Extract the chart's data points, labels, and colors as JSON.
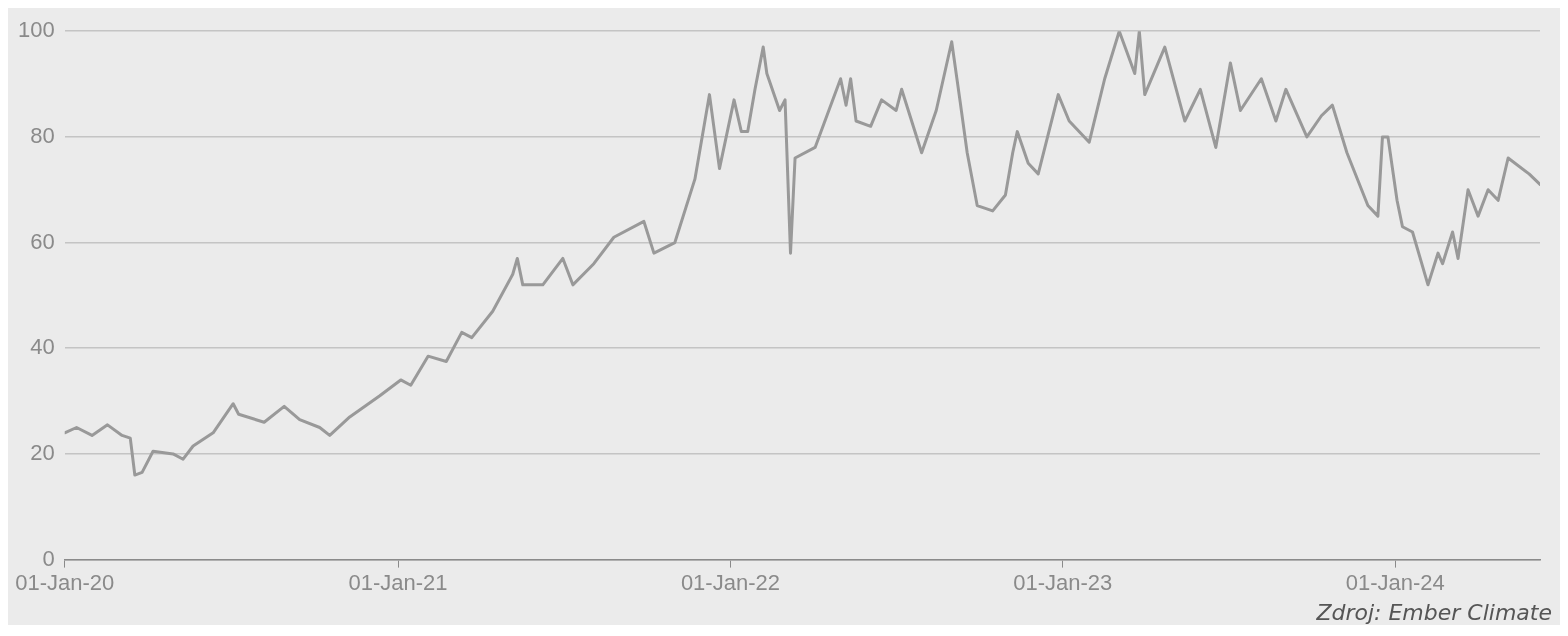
{
  "chart_data": {
    "type": "line",
    "x": [
      "2020-01-01",
      "2020-01-14",
      "2020-01-31",
      "2020-02-17",
      "2020-03-04",
      "2020-03-13",
      "2020-03-18",
      "2020-03-26",
      "2020-04-07",
      "2020-04-29",
      "2020-05-10",
      "2020-05-21",
      "2020-06-12",
      "2020-07-04",
      "2020-07-10",
      "2020-08-07",
      "2020-08-29",
      "2020-09-15",
      "2020-10-07",
      "2020-10-18",
      "2020-11-09",
      "2020-12-12",
      "2021-01-04",
      "2021-01-15",
      "2021-02-03",
      "2021-02-23",
      "2021-03-12",
      "2021-03-23",
      "2021-04-15",
      "2021-05-07",
      "2021-05-12",
      "2021-05-18",
      "2021-06-09",
      "2021-07-01",
      "2021-07-12",
      "2021-08-04",
      "2021-08-26",
      "2021-09-28",
      "2021-10-09",
      "2021-11-01",
      "2021-11-23",
      "2021-12-04",
      "2021-12-09",
      "2021-12-20",
      "2022-01-05",
      "2022-01-13",
      "2022-01-20",
      "2022-01-28",
      "2022-02-06",
      "2022-02-10",
      "2022-02-24",
      "2022-03-02",
      "2022-03-08",
      "2022-03-13",
      "2022-04-04",
      "2022-05-02",
      "2022-05-08",
      "2022-05-13",
      "2022-05-19",
      "2022-06-04",
      "2022-06-16",
      "2022-07-02",
      "2022-07-08",
      "2022-07-30",
      "2022-08-15",
      "2022-09-01",
      "2022-09-10",
      "2022-09-18",
      "2022-09-29",
      "2022-10-16",
      "2022-10-30",
      "2022-11-07",
      "2022-11-12",
      "2022-11-24",
      "2022-12-05",
      "2022-12-27",
      "2023-01-08",
      "2023-01-30",
      "2023-02-16",
      "2023-03-04",
      "2023-03-21",
      "2023-03-26",
      "2023-04-01",
      "2023-04-23",
      "2023-05-15",
      "2023-06-01",
      "2023-06-18",
      "2023-07-04",
      "2023-07-15",
      "2023-08-07",
      "2023-08-23",
      "2023-09-03",
      "2023-09-26",
      "2023-10-12",
      "2023-10-24",
      "2023-11-09",
      "2023-12-02",
      "2023-12-13",
      "2023-12-18",
      "2023-12-24",
      "2024-01-03",
      "2024-01-09",
      "2024-01-20",
      "2024-02-06",
      "2024-02-17",
      "2024-02-22",
      "2024-03-04",
      "2024-03-10",
      "2024-03-21",
      "2024-04-01",
      "2024-04-12",
      "2024-04-23",
      "2024-05-04",
      "2024-05-27",
      "2024-06-08"
    ],
    "series": [
      {
        "color": "#999999",
        "values": [
          24,
          25,
          23.5,
          25.5,
          23.5,
          23,
          16,
          16.5,
          20.5,
          20,
          19,
          21.5,
          24,
          29.5,
          27.5,
          26,
          29,
          26.5,
          25,
          23.5,
          27,
          31,
          34,
          33,
          38.5,
          37.5,
          43,
          42,
          47,
          54,
          57,
          52,
          52,
          57,
          52,
          56,
          61,
          64,
          58,
          60,
          72,
          83,
          88,
          74,
          87,
          81,
          81,
          89,
          97,
          92,
          85,
          87,
          58,
          76,
          78,
          91,
          86,
          91,
          83,
          82,
          87,
          85,
          89,
          77,
          85,
          98,
          87,
          77,
          67,
          66,
          69,
          77,
          81,
          75,
          73,
          88,
          83,
          79,
          91,
          100,
          92,
          100,
          88,
          97,
          83,
          89,
          78,
          94,
          85,
          91,
          83,
          89,
          80,
          84,
          86,
          77,
          67,
          65,
          80,
          80,
          68,
          63,
          62,
          52,
          58,
          56,
          62,
          57,
          70,
          65,
          70,
          68,
          76,
          73,
          71
        ]
      }
    ],
    "xlim": [
      "2020-01-01",
      "2024-06-08"
    ],
    "xticks": [
      {
        "value": "2020-01-01",
        "label": "01-Jan-20"
      },
      {
        "value": "2021-01-01",
        "label": "01-Jan-21"
      },
      {
        "value": "2022-01-01",
        "label": "01-Jan-22"
      },
      {
        "value": "2023-01-01",
        "label": "01-Jan-23"
      },
      {
        "value": "2024-01-01",
        "label": "01-Jan-24"
      }
    ],
    "ylim": [
      0,
      100
    ],
    "yticks": [
      0,
      20,
      40,
      60,
      80,
      100
    ],
    "grid": "y",
    "legend": false,
    "marker": "none",
    "line_style": "solid",
    "annotations": [
      "Zdroj: Ember Climate"
    ]
  }
}
